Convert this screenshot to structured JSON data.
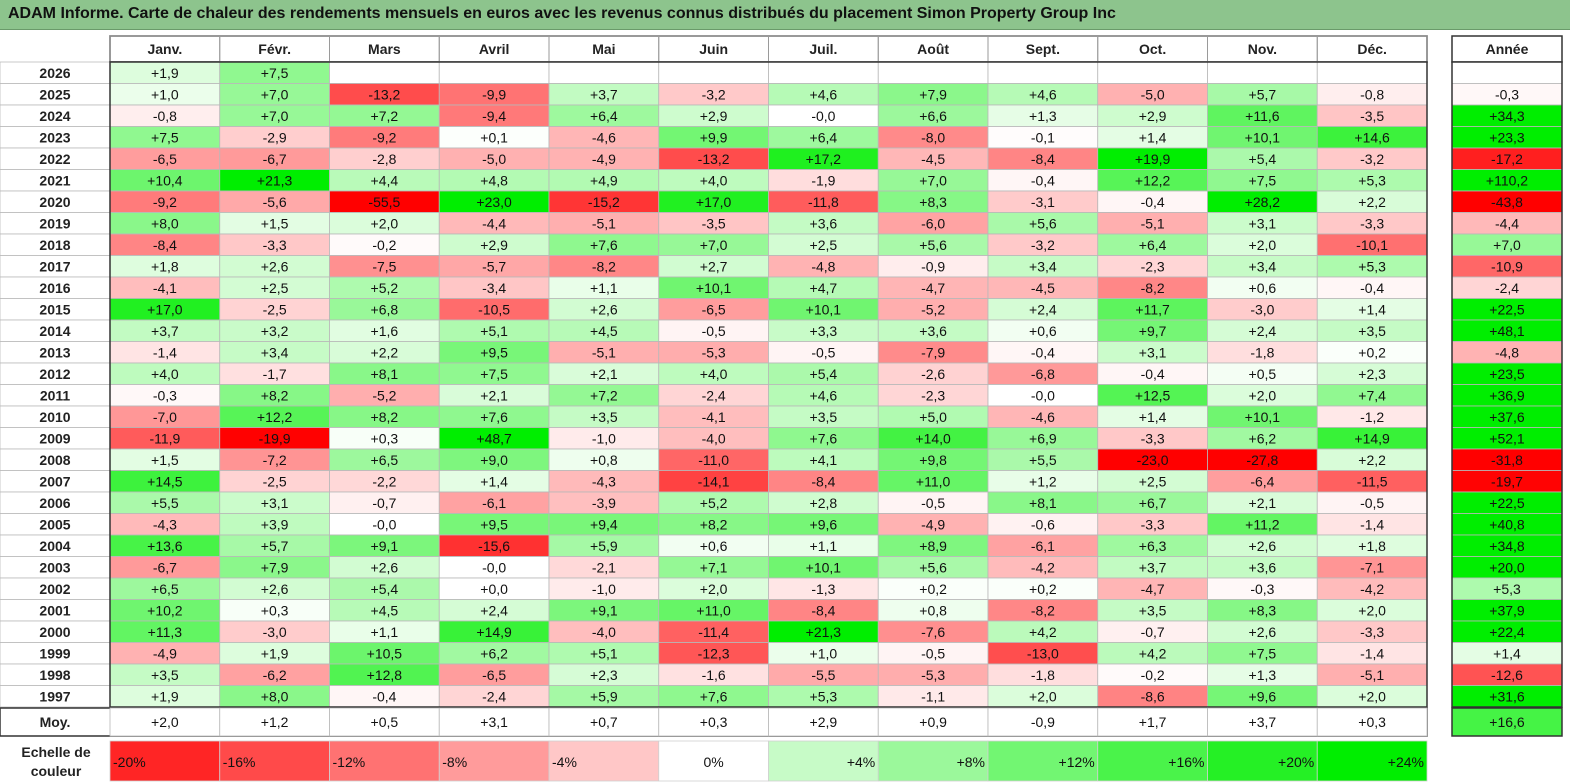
{
  "title": "ADAM Informe. Carte de chaleur des rendements mensuels en euros avec les revenus connus distribués du placement Simon Property Group Inc",
  "chart_data": {
    "type": "heatmap",
    "months": [
      "Janv.",
      "Févr.",
      "Mars",
      "Avril",
      "Mai",
      "Juin",
      "Juil.",
      "Août",
      "Sept.",
      "Oct.",
      "Nov.",
      "Déc."
    ],
    "year_label": "Année",
    "avg_label": "Moy.",
    "rows": [
      {
        "year": "2026",
        "values": [
          "+1,9",
          "+7,5",
          "",
          "",
          "",
          "",
          "",
          "",
          "",
          "",
          "",
          ""
        ],
        "total": ""
      },
      {
        "year": "2025",
        "values": [
          "+1,0",
          "+7,0",
          "-13,2",
          "-9,9",
          "+3,7",
          "-3,2",
          "+4,6",
          "+7,9",
          "+4,6",
          "-5,0",
          "+5,7",
          "-0,8"
        ],
        "total": "-0,3"
      },
      {
        "year": "2024",
        "values": [
          "-0,8",
          "+7,0",
          "+7,2",
          "-9,4",
          "+6,4",
          "+2,9",
          "-0,0",
          "+6,6",
          "+1,3",
          "+2,9",
          "+11,6",
          "-3,5"
        ],
        "total": "+34,3"
      },
      {
        "year": "2023",
        "values": [
          "+7,5",
          "-2,9",
          "-9,2",
          "+0,1",
          "-4,6",
          "+9,9",
          "+6,4",
          "-8,0",
          "-0,1",
          "+1,4",
          "+10,1",
          "+14,6"
        ],
        "total": "+23,3"
      },
      {
        "year": "2022",
        "values": [
          "-6,5",
          "-6,7",
          "-2,8",
          "-5,0",
          "-4,9",
          "-13,2",
          "+17,2",
          "-4,5",
          "-8,4",
          "+19,9",
          "+5,4",
          "-3,2"
        ],
        "total": "-17,2"
      },
      {
        "year": "2021",
        "values": [
          "+10,4",
          "+21,3",
          "+4,4",
          "+4,8",
          "+4,9",
          "+4,0",
          "-1,9",
          "+7,0",
          "-0,4",
          "+12,2",
          "+7,5",
          "+5,3"
        ],
        "total": "+110,2"
      },
      {
        "year": "2020",
        "values": [
          "-9,2",
          "-5,6",
          "-55,5",
          "+23,0",
          "-15,2",
          "+17,0",
          "-11,8",
          "+8,3",
          "-3,1",
          "-0,4",
          "+28,2",
          "+2,2"
        ],
        "total": "-43,8"
      },
      {
        "year": "2019",
        "values": [
          "+8,0",
          "+1,5",
          "+2,0",
          "-4,4",
          "-5,1",
          "-3,5",
          "+3,6",
          "-6,0",
          "+5,6",
          "-5,1",
          "+3,1",
          "-3,3"
        ],
        "total": "-4,4"
      },
      {
        "year": "2018",
        "values": [
          "-8,4",
          "-3,3",
          "-0,2",
          "+2,9",
          "+7,6",
          "+7,0",
          "+2,5",
          "+5,6",
          "-3,2",
          "+6,4",
          "+2,0",
          "-10,1"
        ],
        "total": "+7,0"
      },
      {
        "year": "2017",
        "values": [
          "+1,8",
          "+2,6",
          "-7,5",
          "-5,7",
          "-8,2",
          "+2,7",
          "-4,8",
          "-0,9",
          "+3,4",
          "-2,3",
          "+3,4",
          "+5,3"
        ],
        "total": "-10,9"
      },
      {
        "year": "2016",
        "values": [
          "-4,1",
          "+2,5",
          "+5,2",
          "-3,4",
          "+1,1",
          "+10,1",
          "+4,7",
          "-4,7",
          "-4,5",
          "-8,2",
          "+0,6",
          "-0,4"
        ],
        "total": "-2,4"
      },
      {
        "year": "2015",
        "values": [
          "+17,0",
          "-2,5",
          "+6,8",
          "-10,5",
          "+2,6",
          "-6,5",
          "+10,1",
          "-5,2",
          "+2,4",
          "+11,7",
          "-3,0",
          "+1,4"
        ],
        "total": "+22,5"
      },
      {
        "year": "2014",
        "values": [
          "+3,7",
          "+3,2",
          "+1,6",
          "+5,1",
          "+4,5",
          "-0,5",
          "+3,3",
          "+3,6",
          "+0,6",
          "+9,7",
          "+2,4",
          "+3,5"
        ],
        "total": "+48,1"
      },
      {
        "year": "2013",
        "values": [
          "-1,4",
          "+3,4",
          "+2,2",
          "+9,5",
          "-5,1",
          "-5,3",
          "-0,5",
          "-7,9",
          "-0,4",
          "+3,1",
          "-1,8",
          "+0,2"
        ],
        "total": "-4,8"
      },
      {
        "year": "2012",
        "values": [
          "+4,0",
          "-1,7",
          "+8,1",
          "+7,5",
          "+2,1",
          "+4,0",
          "+5,4",
          "-2,6",
          "-6,8",
          "-0,4",
          "+0,5",
          "+2,3"
        ],
        "total": "+23,5"
      },
      {
        "year": "2011",
        "values": [
          "-0,3",
          "+8,2",
          "-5,2",
          "+2,1",
          "+7,2",
          "-2,4",
          "+4,6",
          "-2,3",
          "-0,0",
          "+12,5",
          "+2,0",
          "+7,4"
        ],
        "total": "+36,9"
      },
      {
        "year": "2010",
        "values": [
          "-7,0",
          "+12,2",
          "+8,2",
          "+7,6",
          "+3,5",
          "-4,1",
          "+3,5",
          "+5,0",
          "-4,6",
          "+1,4",
          "+10,1",
          "-1,2"
        ],
        "total": "+37,6"
      },
      {
        "year": "2009",
        "values": [
          "-11,9",
          "-19,9",
          "+0,3",
          "+48,7",
          "-1,0",
          "-4,0",
          "+7,6",
          "+14,0",
          "+6,9",
          "-3,3",
          "+6,2",
          "+14,9"
        ],
        "total": "+52,1"
      },
      {
        "year": "2008",
        "values": [
          "+1,5",
          "-7,2",
          "+6,5",
          "+9,0",
          "+0,8",
          "-11,0",
          "+4,1",
          "+9,8",
          "+5,5",
          "-23,0",
          "-27,8",
          "+2,2"
        ],
        "total": "-31,8"
      },
      {
        "year": "2007",
        "values": [
          "+14,5",
          "-2,5",
          "-2,2",
          "+1,4",
          "-4,3",
          "-14,1",
          "-8,4",
          "+11,0",
          "+1,2",
          "+2,5",
          "-6,4",
          "-11,5"
        ],
        "total": "-19,7"
      },
      {
        "year": "2006",
        "values": [
          "+5,5",
          "+3,1",
          "-0,7",
          "-6,1",
          "-3,9",
          "+5,2",
          "+2,8",
          "-0,5",
          "+8,1",
          "+6,7",
          "+2,1",
          "-0,5"
        ],
        "total": "+22,5"
      },
      {
        "year": "2005",
        "values": [
          "-4,3",
          "+3,9",
          "-0,0",
          "+9,5",
          "+9,4",
          "+8,2",
          "+9,6",
          "-4,9",
          "-0,6",
          "-3,3",
          "+11,2",
          "-1,4"
        ],
        "total": "+40,8"
      },
      {
        "year": "2004",
        "values": [
          "+13,6",
          "+5,7",
          "+9,1",
          "-15,6",
          "+5,9",
          "+0,6",
          "+1,1",
          "+8,9",
          "-6,1",
          "+6,3",
          "+2,6",
          "+1,8"
        ],
        "total": "+34,8"
      },
      {
        "year": "2003",
        "values": [
          "-6,7",
          "+7,9",
          "+2,6",
          "-0,0",
          "-2,1",
          "+7,1",
          "+10,1",
          "+5,6",
          "-4,2",
          "+3,7",
          "+3,6",
          "-7,1"
        ],
        "total": "+20,0"
      },
      {
        "year": "2002",
        "values": [
          "+6,5",
          "+2,6",
          "+5,4",
          "+0,0",
          "-1,0",
          "+2,0",
          "-1,3",
          "+0,2",
          "+0,2",
          "-4,7",
          "-0,3",
          "-4,2"
        ],
        "total": "+5,3"
      },
      {
        "year": "2001",
        "values": [
          "+10,2",
          "+0,3",
          "+4,5",
          "+2,4",
          "+9,1",
          "+11,0",
          "-8,4",
          "+0,8",
          "-8,2",
          "+3,5",
          "+8,3",
          "+2,0"
        ],
        "total": "+37,9"
      },
      {
        "year": "2000",
        "values": [
          "+11,3",
          "-3,0",
          "+1,1",
          "+14,9",
          "-4,0",
          "-11,4",
          "+21,3",
          "-7,6",
          "+4,2",
          "-0,7",
          "+2,6",
          "-3,3"
        ],
        "total": "+22,4"
      },
      {
        "year": "1999",
        "values": [
          "-4,9",
          "+1,9",
          "+10,5",
          "+6,2",
          "+5,1",
          "-12,3",
          "+1,0",
          "-0,5",
          "-13,0",
          "+4,2",
          "+7,5",
          "-1,4"
        ],
        "total": "+1,4"
      },
      {
        "year": "1998",
        "values": [
          "+3,5",
          "-6,2",
          "+12,8",
          "-6,5",
          "+2,3",
          "-1,6",
          "-5,5",
          "-5,3",
          "-1,8",
          "-0,2",
          "+1,3",
          "-5,1"
        ],
        "total": "-12,6"
      },
      {
        "year": "1997",
        "values": [
          "+1,9",
          "+8,0",
          "-0,4",
          "-2,4",
          "+5,9",
          "+7,6",
          "+5,3",
          "-1,1",
          "+2,0",
          "-8,6",
          "+9,6",
          "+2,0"
        ],
        "total": "+31,6"
      }
    ],
    "averages": [
      "+2,0",
      "+1,2",
      "+0,5",
      "+3,1",
      "+0,7",
      "+0,3",
      "+2,9",
      "+0,9",
      "-0,9",
      "+1,7",
      "+3,7",
      "+0,3"
    ],
    "average_total": "+16,6",
    "scale_label": [
      "Echelle de",
      "couleur"
    ],
    "scale": [
      {
        "label": "-20%",
        "value": -20
      },
      {
        "label": "-16%",
        "value": -16
      },
      {
        "label": "-12%",
        "value": -12
      },
      {
        "label": "-8%",
        "value": -8
      },
      {
        "label": "-4%",
        "value": -4
      },
      {
        "label": "0%",
        "value": 0
      },
      {
        "label": "+4%",
        "value": 4
      },
      {
        "label": "+8%",
        "value": 8
      },
      {
        "label": "+12%",
        "value": 12
      },
      {
        "label": "+16%",
        "value": 16
      },
      {
        "label": "+20%",
        "value": 20
      },
      {
        "label": "+24%",
        "value": 24
      }
    ],
    "colors": {
      "negative_max": "#ff0000",
      "neutral": "#ffffff",
      "positive_max": "#00ee00",
      "title_bar": "#8dc48d"
    }
  }
}
